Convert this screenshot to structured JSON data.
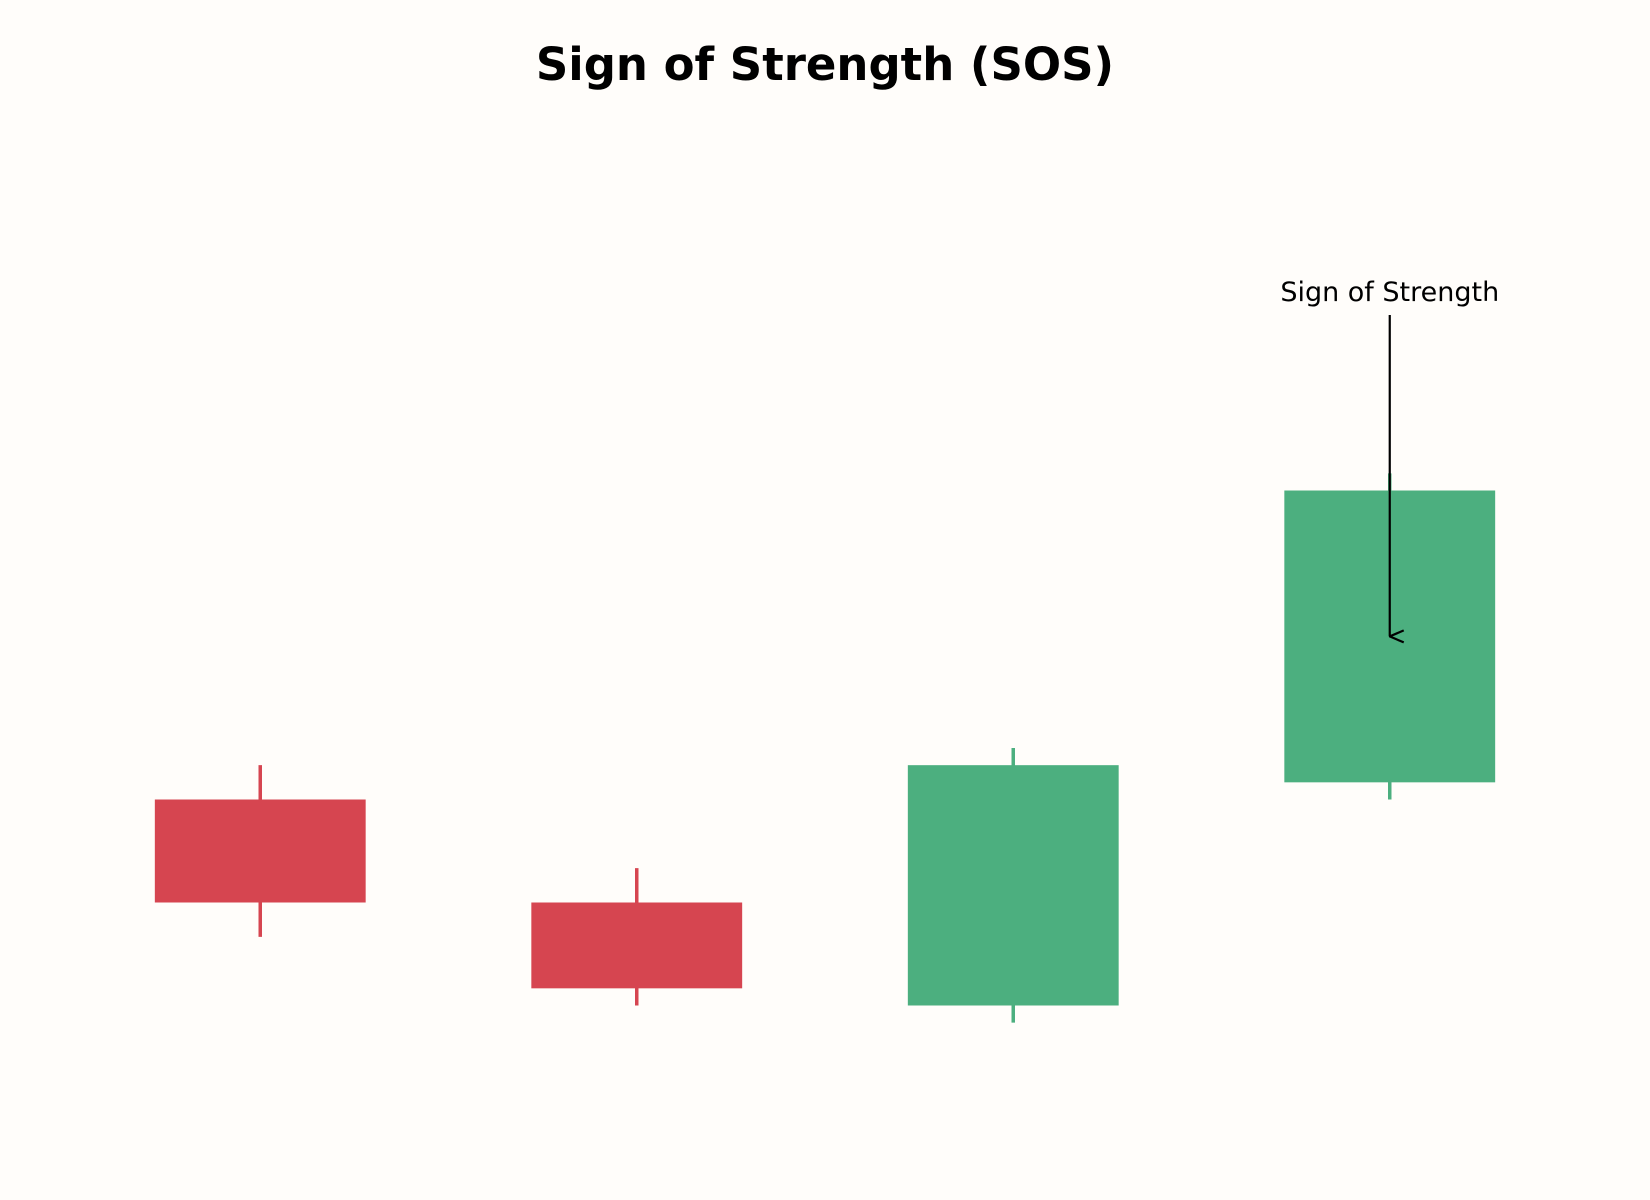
{
  "chart_data": {
    "type": "candlestick",
    "title": "Sign of Strength (SOS)",
    "xlabel": "",
    "ylabel": "",
    "ylim": [
      0,
      12
    ],
    "grid": false,
    "candles": [
      {
        "index": 1,
        "open": 4.2,
        "close": 3.0,
        "high": 4.6,
        "low": 2.6,
        "direction": "down"
      },
      {
        "index": 2,
        "open": 3.0,
        "close": 2.0,
        "high": 3.4,
        "low": 1.8,
        "direction": "down"
      },
      {
        "index": 3,
        "open": 1.8,
        "close": 4.6,
        "high": 4.8,
        "low": 1.6,
        "direction": "up"
      },
      {
        "index": 4,
        "open": 4.4,
        "close": 7.8,
        "high": 8.0,
        "low": 4.2,
        "direction": "up"
      }
    ],
    "annotations": [
      {
        "text": "Sign of Strength",
        "target_candle": 4,
        "target_value": 6.1
      }
    ],
    "colors": {
      "up": "#4caf7f",
      "down": "#d64550",
      "background": "#fffdfa",
      "annotation": "#000000"
    }
  }
}
